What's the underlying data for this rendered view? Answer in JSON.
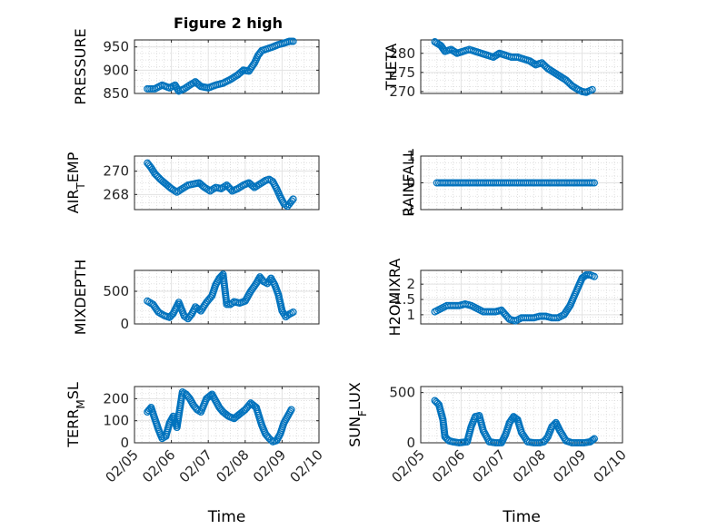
{
  "figure": {
    "title": "Figure 2 high",
    "marker_color": "#0072BD"
  },
  "chart_data": [
    {
      "type": "scatter",
      "title": "Figure 2 high",
      "ylabel": "PRESSURE",
      "xlabel": "",
      "xlim": [
        "02/05",
        "02/10"
      ],
      "ylim": [
        850,
        965
      ],
      "yticks": [
        850,
        900,
        950
      ],
      "xticks": [],
      "grid": true,
      "minor_grid": true,
      "series": [
        {
          "x": [
            5.35,
            5.55,
            5.75,
            5.95,
            6.1,
            6.2,
            6.35,
            6.5,
            6.65,
            6.8,
            7.0,
            7.2,
            7.4,
            7.6,
            7.8,
            7.95,
            8.1,
            8.25,
            8.35,
            8.45,
            8.6,
            8.75,
            8.9,
            9.05,
            9.2,
            9.3
          ],
          "y": [
            860,
            860,
            868,
            862,
            868,
            855,
            860,
            868,
            875,
            865,
            862,
            868,
            872,
            880,
            890,
            900,
            898,
            915,
            932,
            942,
            946,
            950,
            955,
            958,
            962,
            962
          ]
        }
      ]
    },
    {
      "type": "scatter",
      "ylabel": "THETA",
      "xlabel": "",
      "xlim": [
        "02/05",
        "02/10"
      ],
      "ylim": [
        269.5,
        283.5
      ],
      "yticks": [
        270,
        275,
        280
      ],
      "xticks": [],
      "grid": true,
      "minor_grid": true,
      "series": [
        {
          "x": [
            5.35,
            5.5,
            5.6,
            5.75,
            5.9,
            6.05,
            6.2,
            6.35,
            6.5,
            6.65,
            6.8,
            6.95,
            7.1,
            7.25,
            7.4,
            7.55,
            7.7,
            7.85,
            8.0,
            8.15,
            8.3,
            8.45,
            8.6,
            8.75,
            8.9,
            9.0,
            9.1,
            9.25
          ],
          "y": [
            283,
            282,
            280.5,
            281,
            280,
            280.5,
            281,
            280.5,
            280,
            279.5,
            279,
            280,
            279.5,
            279,
            279,
            278.5,
            278,
            277,
            277.5,
            276,
            275,
            274,
            273,
            271.5,
            270.5,
            270,
            269.8,
            270.5
          ]
        }
      ]
    },
    {
      "type": "scatter",
      "ylabel": "AIR_TEMP",
      "xlabel": "",
      "xlim": [
        "02/05",
        "02/10"
      ],
      "ylim": [
        266.7,
        271.3
      ],
      "yticks": [
        268,
        270
      ],
      "xticks": [],
      "grid": true,
      "minor_grid": true,
      "series": [
        {
          "x": [
            5.35,
            5.45,
            5.55,
            5.7,
            5.85,
            6.0,
            6.15,
            6.3,
            6.45,
            6.6,
            6.75,
            6.9,
            7.05,
            7.2,
            7.35,
            7.5,
            7.65,
            7.8,
            7.95,
            8.1,
            8.25,
            8.4,
            8.55,
            8.65,
            8.75,
            8.85,
            8.95,
            9.05,
            9.15,
            9.3
          ],
          "y": [
            270.7,
            270.3,
            269.8,
            269.3,
            268.9,
            268.5,
            268.2,
            268.5,
            268.8,
            268.9,
            269.0,
            268.6,
            268.3,
            268.6,
            268.5,
            268.8,
            268.3,
            268.5,
            268.8,
            269.0,
            268.6,
            268.9,
            269.2,
            269.3,
            269.1,
            268.5,
            267.8,
            267.2,
            267.0,
            267.6
          ]
        }
      ]
    },
    {
      "type": "scatter",
      "ylabel": "RAINFALL",
      "xlabel": "",
      "xlim": [
        "02/05",
        "02/10"
      ],
      "ylim": [
        -1,
        1
      ],
      "yticks": [
        -1,
        0,
        1
      ],
      "xticks": [],
      "grid": true,
      "minor_grid": true,
      "series": [
        {
          "x": [
            5.4,
            5.55,
            5.7,
            5.85,
            6.0,
            6.15,
            6.3,
            6.45,
            6.6,
            6.75,
            6.9,
            7.05,
            7.2,
            7.35,
            7.5,
            7.65,
            7.8,
            7.95,
            8.1,
            8.25,
            8.4,
            8.55,
            8.7,
            8.85,
            9.0,
            9.15,
            9.3
          ],
          "y": [
            0,
            0,
            0,
            0,
            0,
            0,
            0,
            0,
            0,
            0,
            0,
            0,
            0,
            0,
            0,
            0,
            0,
            0,
            0,
            0,
            0,
            0,
            0,
            0,
            0,
            0,
            0
          ]
        }
      ]
    },
    {
      "type": "scatter",
      "ylabel": "MIXDEPTH",
      "xlabel": "",
      "xlim": [
        "02/05",
        "02/10"
      ],
      "ylim": [
        0,
        820
      ],
      "yticks": [
        0,
        500
      ],
      "xticks": [],
      "grid": true,
      "minor_grid": true,
      "series": [
        {
          "x": [
            5.35,
            5.5,
            5.65,
            5.8,
            5.95,
            6.05,
            6.2,
            6.35,
            6.45,
            6.55,
            6.65,
            6.8,
            6.95,
            7.1,
            7.2,
            7.3,
            7.4,
            7.5,
            7.6,
            7.7,
            7.85,
            8.0,
            8.15,
            8.3,
            8.4,
            8.5,
            8.6,
            8.7,
            8.8,
            8.9,
            9.0,
            9.1,
            9.2,
            9.3
          ],
          "y": [
            350,
            300,
            180,
            130,
            100,
            160,
            330,
            120,
            80,
            150,
            260,
            200,
            330,
            430,
            600,
            700,
            760,
            300,
            300,
            340,
            320,
            350,
            500,
            620,
            720,
            650,
            620,
            700,
            600,
            450,
            200,
            110,
            150,
            180
          ]
        }
      ]
    },
    {
      "type": "scatter",
      "ylabel": "H2OMIXRA",
      "xlabel": "",
      "xlim": [
        "02/05",
        "02/10"
      ],
      "ylim": [
        0.7,
        2.45
      ],
      "yticks": [
        1,
        1.5,
        2
      ],
      "xticks": [],
      "grid": true,
      "minor_grid": true,
      "series": [
        {
          "x": [
            5.35,
            5.5,
            5.65,
            5.8,
            5.95,
            6.1,
            6.25,
            6.4,
            6.55,
            6.7,
            6.85,
            7.0,
            7.1,
            7.2,
            7.35,
            7.5,
            7.65,
            7.8,
            7.95,
            8.1,
            8.25,
            8.4,
            8.55,
            8.7,
            8.8,
            8.9,
            9.0,
            9.1,
            9.2,
            9.3
          ],
          "y": [
            1.1,
            1.2,
            1.3,
            1.3,
            1.3,
            1.35,
            1.3,
            1.2,
            1.1,
            1.1,
            1.1,
            1.15,
            1.0,
            0.85,
            0.8,
            0.9,
            0.9,
            0.9,
            0.95,
            0.95,
            0.9,
            0.9,
            1.0,
            1.3,
            1.6,
            1.9,
            2.2,
            2.3,
            2.3,
            2.25
          ]
        }
      ]
    },
    {
      "type": "scatter",
      "ylabel": "TERR_MSL",
      "xlabel": "Time",
      "xlim": [
        "02/05",
        "02/10"
      ],
      "ylim": [
        0,
        255
      ],
      "yticks": [
        0,
        100,
        200
      ],
      "xticks": [
        "02/05",
        "02/06",
        "02/07",
        "02/08",
        "02/09",
        "02/10"
      ],
      "grid": true,
      "minor_grid": true,
      "series": [
        {
          "x": [
            5.35,
            5.45,
            5.55,
            5.65,
            5.75,
            5.85,
            5.95,
            6.05,
            6.15,
            6.3,
            6.4,
            6.5,
            6.6,
            6.7,
            6.8,
            6.95,
            7.1,
            7.2,
            7.3,
            7.4,
            7.55,
            7.7,
            7.85,
            8.0,
            8.15,
            8.3,
            8.45,
            8.55,
            8.65,
            8.75,
            8.85,
            8.95,
            9.05,
            9.15,
            9.25
          ],
          "y": [
            140,
            160,
            110,
            60,
            20,
            30,
            90,
            120,
            70,
            230,
            220,
            200,
            170,
            150,
            140,
            200,
            220,
            190,
            160,
            140,
            120,
            110,
            130,
            150,
            180,
            160,
            80,
            40,
            20,
            5,
            10,
            40,
            90,
            120,
            150
          ]
        }
      ]
    },
    {
      "type": "scatter",
      "ylabel": "SUN_FLUX",
      "xlabel": "Time",
      "xlim": [
        "02/05",
        "02/10"
      ],
      "ylim": [
        0,
        560
      ],
      "yticks": [
        0,
        500
      ],
      "xticks": [
        "02/05",
        "02/06",
        "02/07",
        "02/08",
        "02/09",
        "02/10"
      ],
      "grid": true,
      "minor_grid": true,
      "series": [
        {
          "x": [
            5.35,
            5.45,
            5.55,
            5.6,
            5.7,
            5.8,
            5.95,
            6.05,
            6.15,
            6.25,
            6.35,
            6.45,
            6.55,
            6.7,
            6.85,
            7.0,
            7.1,
            7.2,
            7.3,
            7.4,
            7.5,
            7.65,
            7.8,
            7.95,
            8.05,
            8.15,
            8.25,
            8.35,
            8.45,
            8.6,
            8.75,
            8.9,
            9.05,
            9.2,
            9.3
          ],
          "y": [
            420,
            380,
            230,
            60,
            20,
            10,
            0,
            5,
            10,
            160,
            260,
            270,
            120,
            10,
            0,
            0,
            80,
            200,
            260,
            230,
            100,
            10,
            0,
            0,
            10,
            60,
            160,
            200,
            120,
            20,
            0,
            0,
            0,
            10,
            40
          ]
        }
      ]
    }
  ]
}
